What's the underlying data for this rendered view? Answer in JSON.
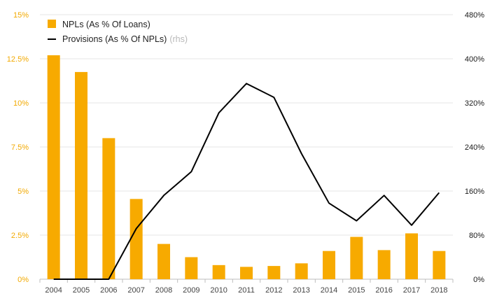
{
  "chart_data": {
    "type": "bar+line",
    "categories": [
      "2004",
      "2005",
      "2006",
      "2007",
      "2008",
      "2009",
      "2010",
      "2011",
      "2012",
      "2013",
      "2014",
      "2015",
      "2016",
      "2017",
      "2018"
    ],
    "series": [
      {
        "name": "NPLs (As % Of Loans)",
        "type": "bar",
        "axis": "left",
        "color": "#f7aa00",
        "values": [
          12.7,
          11.75,
          8.0,
          4.55,
          2.0,
          1.25,
          0.8,
          0.7,
          0.75,
          0.9,
          1.6,
          2.4,
          1.65,
          2.6,
          1.6
        ]
      },
      {
        "name": "Provisions (As % Of NPLs)",
        "suffix": "(rhs)",
        "type": "line",
        "axis": "right",
        "color": "#000000",
        "values": [
          0,
          0,
          0,
          92,
          152,
          195,
          302,
          355,
          330,
          228,
          138,
          106,
          152,
          98,
          157
        ]
      }
    ],
    "y_left": {
      "range": [
        0,
        15
      ],
      "ticks": [
        0,
        2.5,
        5,
        7.5,
        10,
        12.5,
        15
      ],
      "tick_labels": [
        "0%",
        "2.5%",
        "5%",
        "7.5%",
        "10%",
        "12.5%",
        "15%"
      ],
      "color": "#f2a900"
    },
    "y_right": {
      "range": [
        0,
        480
      ],
      "ticks": [
        0,
        80,
        160,
        240,
        320,
        400,
        480
      ],
      "tick_labels": [
        "0%",
        "80%",
        "160%",
        "240%",
        "320%",
        "400%",
        "480%"
      ],
      "color": "#1a1a1a"
    },
    "grid": true,
    "legend_position": "top-left"
  }
}
